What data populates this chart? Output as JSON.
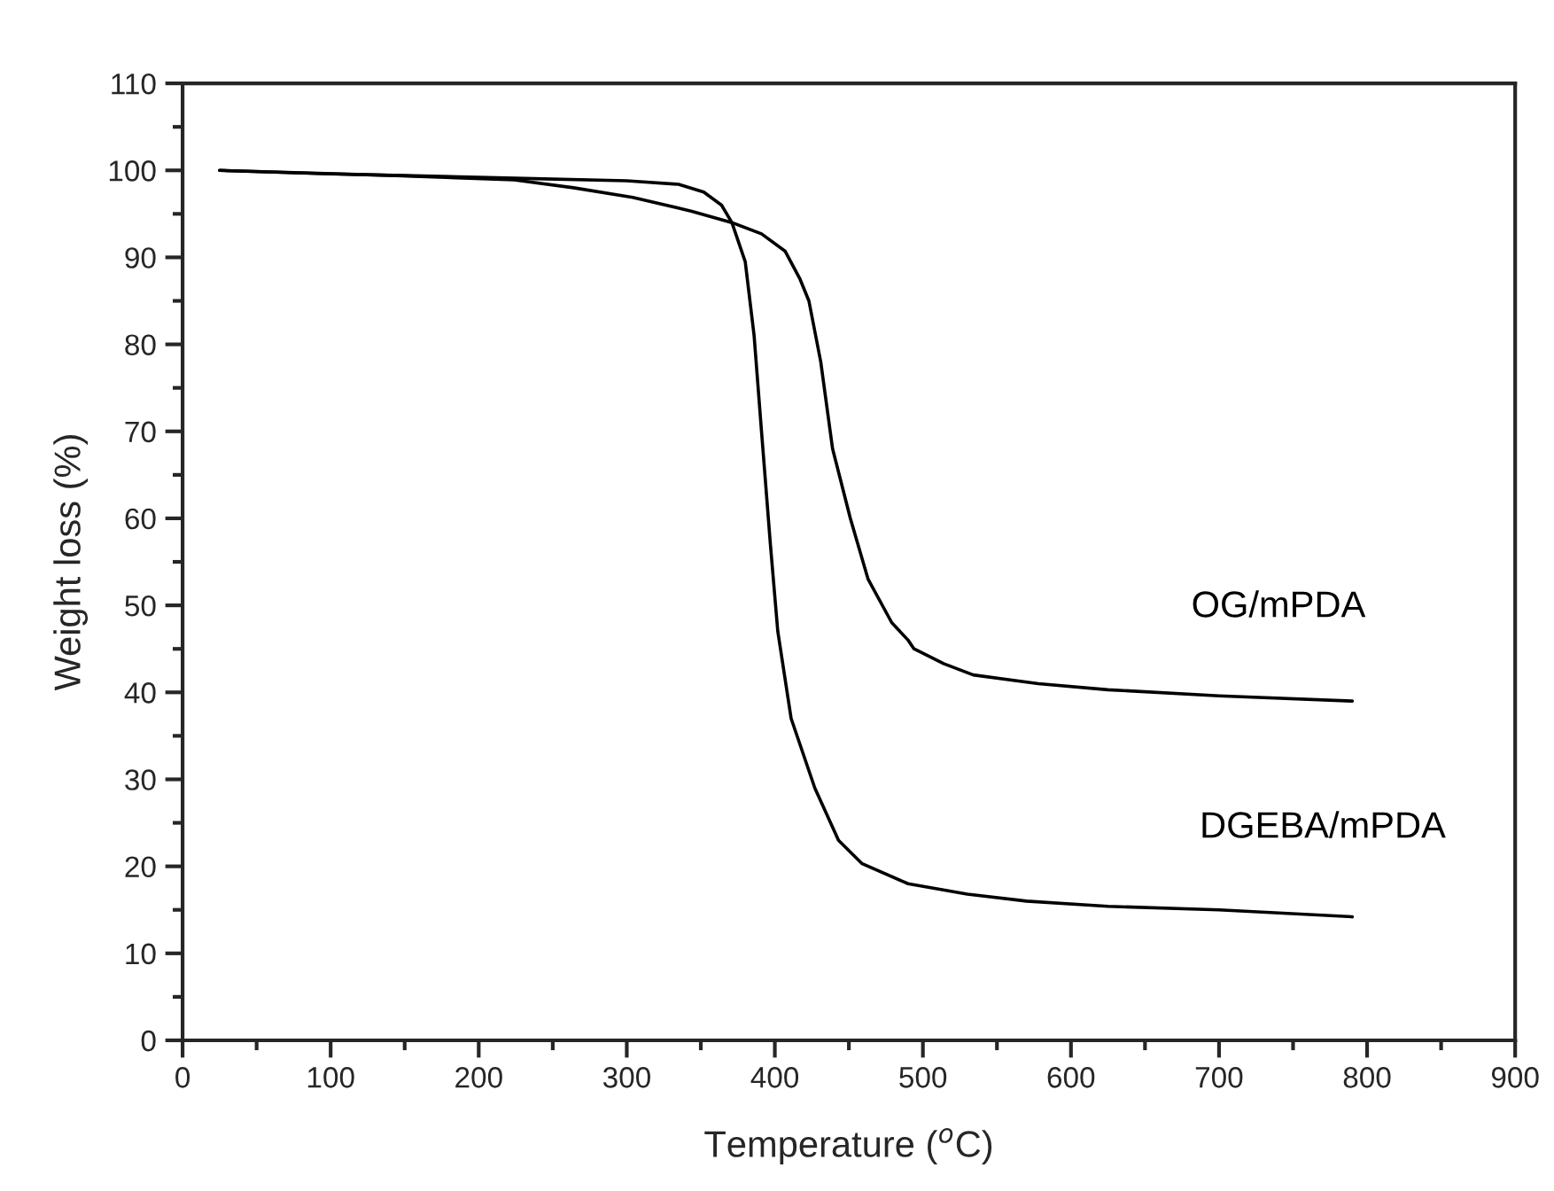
{
  "chart_data": {
    "type": "line",
    "xlabel": "Temperature ($^{o}$C)",
    "ylabel": "Weight loss (%)",
    "xlim": [
      0,
      900
    ],
    "xticks": [
      0,
      100,
      200,
      300,
      400,
      500,
      600,
      700,
      800,
      900
    ],
    "ylim": [
      0,
      110
    ],
    "yticks": [
      0,
      10,
      20,
      30,
      40,
      50,
      60,
      70,
      80,
      90,
      100,
      110
    ],
    "grid": false,
    "legend": false,
    "marker": "none",
    "line_style": "solid",
    "series": [
      {
        "name": "OG/mPDA",
        "color": "#000000",
        "x": [
          25,
          144,
          224,
          264,
          304,
          344,
          371,
          391,
          407,
          417,
          423,
          431,
          439,
          451,
          463,
          479,
          490,
          494,
          514,
          534,
          578,
          625,
          700,
          790
        ],
        "values": [
          100,
          99.4,
          98.9,
          98,
          96.9,
          95.3,
          94,
          92.7,
          90.7,
          87.5,
          85,
          78,
          68,
          60,
          53,
          48,
          46,
          45,
          43.3,
          42,
          41,
          40.3,
          39.6,
          39
        ]
      },
      {
        "name": "DGEBA/mPDA",
        "color": "#000000",
        "x": [
          25,
          100,
          150,
          225,
          300,
          335,
          352,
          364,
          371,
          380,
          386,
          391,
          397,
          402,
          411,
          427,
          443,
          459,
          490,
          530,
          570,
          625,
          700,
          790
        ],
        "values": [
          100,
          99.6,
          99.4,
          99.1,
          98.8,
          98.4,
          97.5,
          96,
          94,
          89.5,
          81,
          70,
          57,
          47,
          37,
          29,
          23,
          20.3,
          18,
          16.8,
          16,
          15.4,
          15,
          14.2
        ]
      }
    ]
  }
}
